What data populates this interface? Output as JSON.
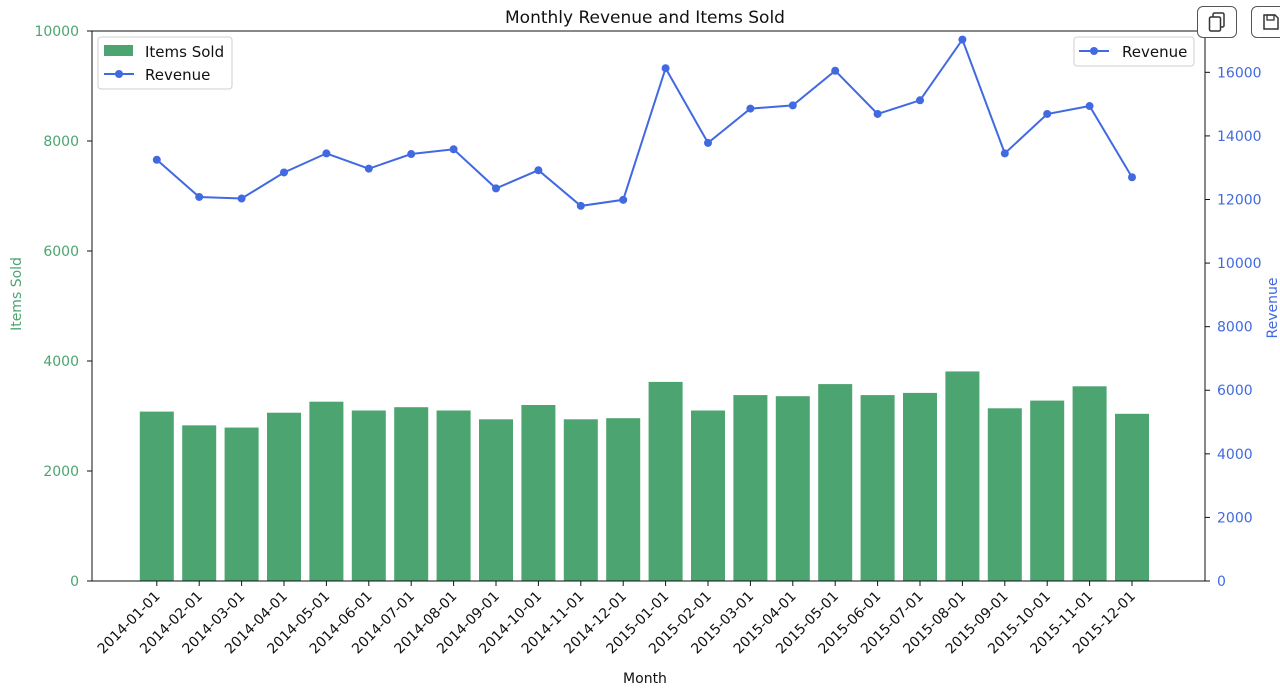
{
  "toolbar": {
    "buttons": [
      {
        "icon": "copy-icon"
      },
      {
        "icon": "save-icon"
      }
    ]
  },
  "colors": {
    "bars": "#4ca471",
    "line": "#4169e1",
    "left_axis": "#4ca471",
    "right_axis": "#4169e1",
    "text": "#111111"
  },
  "chart_data": {
    "type": "bar+line",
    "title": "Monthly Revenue and Items Sold",
    "xlabel": "Month",
    "ylabel_left": "Items Sold",
    "ylabel_right": "Revenue",
    "categories": [
      "2014-01-01",
      "2014-02-01",
      "2014-03-01",
      "2014-04-01",
      "2014-05-01",
      "2014-06-01",
      "2014-07-01",
      "2014-08-01",
      "2014-09-01",
      "2014-10-01",
      "2014-11-01",
      "2014-12-01",
      "2015-01-01",
      "2015-02-01",
      "2015-03-01",
      "2015-04-01",
      "2015-05-01",
      "2015-06-01",
      "2015-07-01",
      "2015-08-01",
      "2015-09-01",
      "2015-10-01",
      "2015-11-01",
      "2015-12-01"
    ],
    "ylim_left": [
      0,
      10000
    ],
    "yticks_left": [
      0,
      2000,
      4000,
      6000,
      8000,
      10000
    ],
    "ylim_right": [
      0,
      17300
    ],
    "yticks_right": [
      0,
      2000,
      4000,
      6000,
      8000,
      10000,
      12000,
      14000,
      16000
    ],
    "series": [
      {
        "name": "Items Sold",
        "type": "bar",
        "axis": "left",
        "values": [
          3080,
          2830,
          2790,
          3060,
          3260,
          3100,
          3160,
          3100,
          2940,
          3200,
          2940,
          2960,
          3620,
          3100,
          3380,
          3360,
          3580,
          3380,
          3420,
          3810,
          3140,
          3280,
          3540,
          3040
        ]
      },
      {
        "name": "Revenue",
        "type": "line",
        "axis": "right",
        "values": [
          13250,
          12080,
          12030,
          12850,
          13450,
          12970,
          13430,
          13580,
          12350,
          12920,
          11800,
          11990,
          16130,
          13780,
          14860,
          14960,
          16050,
          14690,
          15120,
          17030,
          13450,
          14690,
          14940,
          12700
        ]
      }
    ],
    "legend_left": {
      "placement": "top-left",
      "entries": [
        "Items Sold",
        "Revenue"
      ]
    },
    "legend_right": {
      "placement": "top-right",
      "entries": [
        "Revenue"
      ]
    },
    "grid": false
  }
}
